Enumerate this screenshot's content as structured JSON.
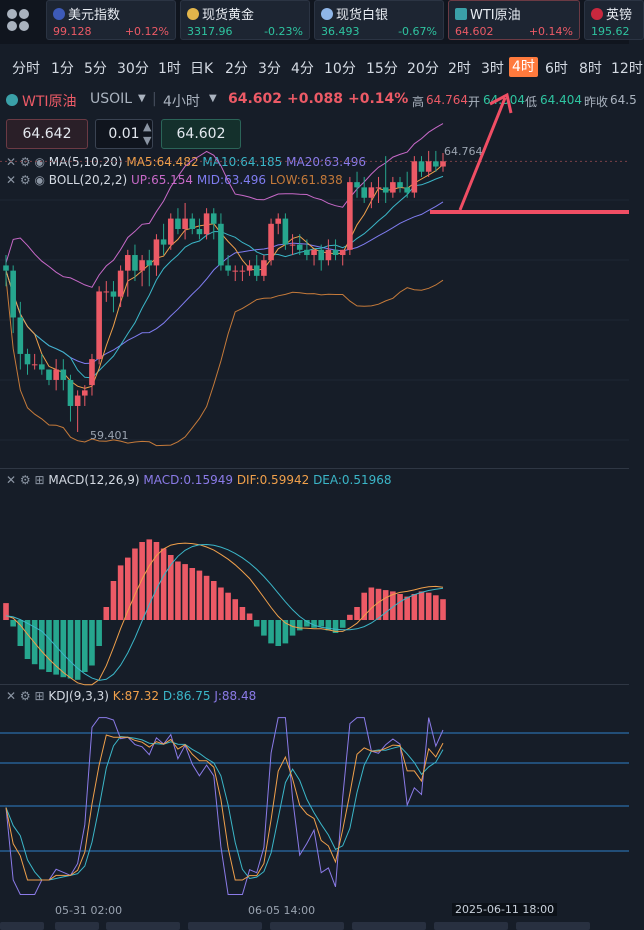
{
  "tickers": [
    {
      "name": "美元指数",
      "price": "99.128",
      "change": "+0.12%",
      "color": "#ec5a66",
      "flag": "us"
    },
    {
      "name": "现货黄金",
      "price": "3317.96",
      "change": "-0.23%",
      "color": "#2ec4a0",
      "flag": "gold"
    },
    {
      "name": "现货白银",
      "price": "36.493",
      "change": "-0.67%",
      "color": "#2ec4a0",
      "flag": "silver"
    },
    {
      "name": "WTI原油",
      "price": "64.602",
      "change": "+0.14%",
      "color": "#ec5a66",
      "flag": "oil"
    },
    {
      "name": "英镑",
      "price": "195.62",
      "change": "",
      "color": "#2ec4a0",
      "flag": "uk"
    }
  ],
  "periods": [
    "分时",
    "1分",
    "5分",
    "30分",
    "1时",
    "日K",
    "2分",
    "3分",
    "4分",
    "10分",
    "15分",
    "20分",
    "2时",
    "3时",
    "4时",
    "6时",
    "8时",
    "12时"
  ],
  "active_period": "4时",
  "quote": {
    "name": "WTI原油",
    "symbol": "USOIL",
    "interval": "4小时",
    "price": "64.602",
    "change": "+0.088",
    "pct": "+0.14%",
    "high_label": "高",
    "high": "64.764",
    "open_label": "开",
    "open": "64.504",
    "low_label": "低",
    "low": "64.404",
    "prev_label": "昨收",
    "prev": "64.5"
  },
  "inputs": {
    "sell": "64.642",
    "lot": "0.01",
    "buy": "64.602"
  },
  "indicators": {
    "ma": {
      "name": "MA(5,10,20)",
      "ma5": "MA5:64.482",
      "ma10": "MA10:64.185",
      "ma20": "MA20:63.496"
    },
    "boll": {
      "name": "BOLL(20,2,2)",
      "up": "UP:65.154",
      "mid": "MID:63.496",
      "low": "LOW:61.838"
    },
    "macd": {
      "name": "MACD(12,26,9)",
      "macd": "MACD:0.15949",
      "dif": "DIF:0.59942",
      "dea": "DEA:0.51968"
    },
    "kdj": {
      "name": "KDJ(9,3,3)",
      "k": "K:87.32",
      "d": "D:86.75",
      "j": "J:88.48"
    }
  },
  "colors": {
    "up": "#ec5a66",
    "down": "#26a68e",
    "ma5": "#f0a04b",
    "ma10": "#3bb6c8",
    "ma20": "#8b7be8",
    "boll_up": "#c769c8",
    "boll_mid": "#7f7cf0",
    "boll_low": "#c57a3a",
    "annot": "#f04e64"
  },
  "chart_data": {
    "type": "candlestick",
    "high_label": "64.764",
    "low_label": "59.401",
    "x_ticks": [
      "05-31 02:00",
      "06-05 14:00",
      "2025-06-11 18:00"
    ],
    "candles": [
      [
        62.6,
        62.8,
        62.2,
        62.5
      ],
      [
        62.5,
        62.6,
        61.3,
        61.6
      ],
      [
        61.6,
        61.9,
        60.6,
        60.9
      ],
      [
        60.9,
        61.0,
        60.5,
        60.7
      ],
      [
        60.7,
        60.9,
        60.6,
        60.7
      ],
      [
        60.7,
        60.9,
        60.5,
        60.6
      ],
      [
        60.6,
        60.6,
        60.3,
        60.4
      ],
      [
        60.4,
        60.8,
        60.2,
        60.6
      ],
      [
        60.6,
        60.8,
        60.2,
        60.4
      ],
      [
        60.4,
        60.5,
        59.6,
        59.9
      ],
      [
        59.9,
        60.2,
        59.4,
        60.1
      ],
      [
        60.1,
        60.3,
        59.9,
        60.2
      ],
      [
        60.3,
        60.9,
        60.1,
        60.8
      ],
      [
        60.8,
        62.2,
        60.7,
        62.1
      ],
      [
        62.1,
        62.3,
        61.9,
        62.1
      ],
      [
        62.1,
        62.3,
        61.7,
        62.0
      ],
      [
        62.0,
        62.6,
        61.8,
        62.5
      ],
      [
        62.5,
        62.9,
        62.0,
        62.8
      ],
      [
        62.8,
        63.0,
        62.3,
        62.5
      ],
      [
        62.5,
        62.8,
        62.2,
        62.7
      ],
      [
        62.7,
        62.9,
        62.2,
        62.6
      ],
      [
        62.6,
        63.2,
        62.4,
        63.1
      ],
      [
        63.1,
        63.4,
        62.8,
        63.0
      ],
      [
        63.0,
        63.6,
        62.9,
        63.5
      ],
      [
        63.5,
        63.7,
        63.2,
        63.3
      ],
      [
        63.3,
        63.8,
        63.1,
        63.5
      ],
      [
        63.5,
        63.6,
        63.2,
        63.3
      ],
      [
        63.3,
        63.5,
        63.1,
        63.2
      ],
      [
        63.2,
        63.7,
        63.1,
        63.6
      ],
      [
        63.6,
        63.7,
        63.1,
        63.4
      ],
      [
        63.4,
        63.6,
        62.5,
        62.6
      ],
      [
        62.6,
        62.8,
        62.4,
        62.5
      ],
      [
        62.5,
        62.6,
        62.3,
        62.5
      ],
      [
        62.5,
        62.6,
        62.3,
        62.5
      ],
      [
        62.5,
        62.7,
        62.4,
        62.6
      ],
      [
        62.6,
        62.8,
        62.3,
        62.4
      ],
      [
        62.4,
        62.8,
        62.3,
        62.7
      ],
      [
        62.7,
        63.5,
        62.6,
        63.4
      ],
      [
        63.4,
        63.6,
        63.2,
        63.5
      ],
      [
        63.5,
        63.6,
        62.9,
        63.0
      ],
      [
        63.0,
        63.2,
        62.8,
        63.0
      ],
      [
        63.0,
        63.2,
        62.8,
        62.9
      ],
      [
        62.9,
        63.1,
        62.7,
        62.8
      ],
      [
        62.8,
        62.9,
        62.6,
        62.9
      ],
      [
        62.9,
        63.0,
        62.5,
        62.7
      ],
      [
        62.7,
        63.1,
        62.6,
        62.9
      ],
      [
        62.9,
        63.1,
        62.7,
        62.8
      ],
      [
        62.8,
        62.9,
        62.6,
        62.9
      ],
      [
        62.9,
        64.3,
        62.8,
        64.2
      ],
      [
        64.2,
        64.4,
        63.9,
        64.1
      ],
      [
        64.1,
        64.3,
        63.8,
        63.9
      ],
      [
        63.9,
        64.2,
        63.7,
        64.1
      ],
      [
        64.1,
        64.3,
        63.8,
        64.1
      ],
      [
        64.1,
        64.7,
        63.8,
        64.0
      ],
      [
        64.0,
        64.3,
        63.9,
        64.2
      ],
      [
        64.2,
        64.3,
        64.0,
        64.1
      ],
      [
        64.1,
        64.4,
        63.9,
        64.0
      ],
      [
        64.0,
        64.7,
        63.9,
        64.6
      ],
      [
        64.6,
        64.7,
        64.3,
        64.4
      ],
      [
        64.4,
        64.8,
        64.3,
        64.6
      ],
      [
        64.6,
        64.8,
        64.4,
        64.5
      ],
      [
        64.5,
        64.76,
        64.4,
        64.6
      ]
    ],
    "macd_hist": [
      0.13,
      -0.05,
      -0.2,
      -0.3,
      -0.34,
      -0.38,
      -0.4,
      -0.42,
      -0.44,
      -0.45,
      -0.46,
      -0.4,
      -0.35,
      -0.2,
      0.1,
      0.3,
      0.42,
      0.48,
      0.55,
      0.6,
      0.62,
      0.6,
      0.55,
      0.5,
      0.45,
      0.43,
      0.4,
      0.38,
      0.34,
      0.3,
      0.25,
      0.21,
      0.16,
      0.1,
      0.05,
      -0.05,
      -0.12,
      -0.18,
      -0.2,
      -0.18,
      -0.12,
      -0.08,
      -0.05,
      -0.06,
      -0.05,
      -0.08,
      -0.1,
      -0.06,
      0.04,
      0.1,
      0.21,
      0.25,
      0.24,
      0.23,
      0.22,
      0.2,
      0.18,
      0.2,
      0.22,
      0.21,
      0.19,
      0.16
    ],
    "kdj": {
      "k": "K:87.32",
      "d": "D:86.75",
      "j": "J:88.48"
    }
  }
}
